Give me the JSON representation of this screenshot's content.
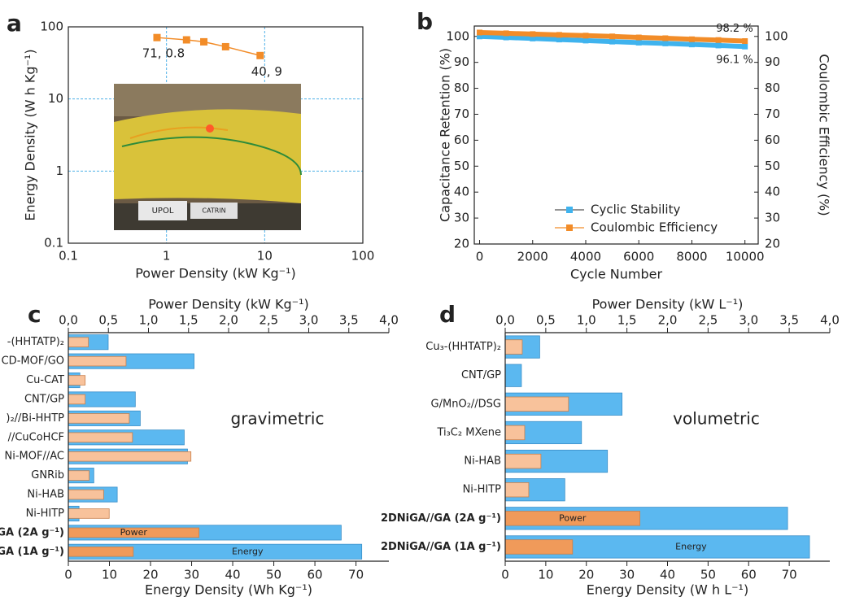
{
  "chart_data": [
    {
      "type": "line",
      "panel_label": "a",
      "xscale": "log",
      "yscale": "log",
      "xlabel": "Power Density (kW Kg⁻¹)",
      "ylabel": "Energy Density (W h Kg⁻¹)",
      "xlim": [
        0.1,
        100
      ],
      "ylim": [
        0.1,
        100
      ],
      "xticks": [
        0.1,
        1,
        10,
        100
      ],
      "yticks": [
        0.1,
        1,
        10,
        100
      ],
      "grid": true,
      "x": [
        0.8,
        1.6,
        2.4,
        4,
        9
      ],
      "series": [
        {
          "color": "#f28c28",
          "values": [
            71,
            66,
            62,
            53,
            40
          ]
        }
      ],
      "annotations": [
        "71, 0.8",
        "40, 9"
      ],
      "inset_labels": [
        "UPOL",
        "CATRIN"
      ]
    },
    {
      "type": "line",
      "panel_label": "b",
      "xlabel": "Cycle Number",
      "ylabel": "Capacitance Retention (%)",
      "y2label": "Coulombic Efficiency (%)",
      "xlim": [
        -200,
        10500
      ],
      "ylim": [
        20,
        104
      ],
      "y2lim": [
        20,
        104
      ],
      "xticks": [
        0,
        2000,
        4000,
        6000,
        8000,
        10000
      ],
      "yticks": [
        20,
        30,
        40,
        50,
        60,
        70,
        80,
        90,
        100
      ],
      "y2ticks": [
        20,
        30,
        40,
        50,
        60,
        70,
        80,
        90,
        100
      ],
      "legend": "lower right",
      "x": [
        0,
        1000,
        2000,
        3000,
        4000,
        5000,
        6000,
        7000,
        8000,
        9000,
        10000
      ],
      "series": [
        {
          "name": "Cyclic Stability",
          "color": "#3fb3ee",
          "values": [
            100,
            99.6,
            99.2,
            98.8,
            98.4,
            98.0,
            97.6,
            97.3,
            96.9,
            96.5,
            96.1
          ]
        },
        {
          "name": "Coulombic Efficiency",
          "color": "#f28c28",
          "axis": "y2",
          "values": [
            101.5,
            101.2,
            100.9,
            100.6,
            100.3,
            100.0,
            99.6,
            99.3,
            98.9,
            98.6,
            98.2
          ]
        }
      ],
      "annotations": [
        "98.2 %",
        "96.1 %"
      ]
    },
    {
      "type": "barh",
      "panel_label": "c",
      "xlabel": "Energy Density (Wh Kg⁻¹)",
      "x2label": "Power Density (kW Kg⁻¹)",
      "xlim": [
        0,
        78
      ],
      "x2lim": [
        0,
        4
      ],
      "xticks": [
        0,
        10,
        20,
        30,
        40,
        50,
        60,
        70
      ],
      "x2ticks": [
        {
          "value": 0,
          "label": "0,0"
        },
        {
          "value": 0.5,
          "label": "0,5"
        },
        {
          "value": 1,
          "label": "1,0"
        },
        {
          "value": 1.5,
          "label": "1,5"
        },
        {
          "value": 2,
          "label": "2,0"
        },
        {
          "value": 2.5,
          "label": "2,5"
        },
        {
          "value": 3,
          "label": "3,0"
        },
        {
          "value": 3.5,
          "label": "3,5"
        },
        {
          "value": 4,
          "label": "4,0"
        }
      ],
      "categories": [
        "-(HHTATP)₂",
        "CD-MOF/GO",
        "Cu-CAT",
        "CNT/GP",
        ")₂//Bi-HHTP",
        "//CuCoHCF",
        "Ni-MOF//AC",
        "GNRib",
        "Ni-HAB",
        "Ni-HITP",
        "/GA (2A g⁻¹)",
        "/GA (1A g⁻¹)"
      ],
      "series": [
        {
          "name": "Energy",
          "color": "#5bb8f0",
          "values": [
            9.7,
            30.6,
            2.8,
            16.3,
            17.5,
            28.2,
            29,
            6.2,
            11.9,
            2.6,
            66.4,
            71.4
          ]
        },
        {
          "name": "Power",
          "color": "#f8c29b",
          "axis": "x2",
          "values": [
            0.25,
            0.72,
            0.21,
            0.21,
            0.76,
            0.8,
            1.53,
            0.26,
            0.44,
            0.51,
            1.63,
            0.81
          ]
        }
      ],
      "annotation": "gravimetric"
    },
    {
      "type": "barh",
      "panel_label": "d",
      "xlabel": "Energy Density (W h L⁻¹)",
      "x2label": "Power Density (kW L⁻¹)",
      "xlim": [
        0,
        80
      ],
      "x2lim": [
        0,
        4
      ],
      "xticks": [
        0,
        10,
        20,
        30,
        40,
        50,
        60,
        70
      ],
      "x2ticks": [
        {
          "value": 0,
          "label": "0,0"
        },
        {
          "value": 0.5,
          "label": "0,5"
        },
        {
          "value": 1,
          "label": "1,0"
        },
        {
          "value": 1.5,
          "label": "1,5"
        },
        {
          "value": 2,
          "label": "2,0"
        },
        {
          "value": 2.5,
          "label": "2,5"
        },
        {
          "value": 3,
          "label": "3,0"
        },
        {
          "value": 3.5,
          "label": "3,5"
        },
        {
          "value": 4,
          "label": "4,0"
        }
      ],
      "categories": [
        "Cu₃-(HHTATP)₂",
        "CNT/GP",
        "G/MnO₂//DSG",
        "Ti₃C₂ MXene",
        "Ni-HAB",
        "Ni-HITP",
        "2DNiGA//GA (2A g⁻¹)",
        "2DNiGA//GA (1A g⁻¹)"
      ],
      "series": [
        {
          "name": "Energy",
          "color": "#5bb8f0",
          "values": [
            8.5,
            4.0,
            28.8,
            18.8,
            25.2,
            14.7,
            69.6,
            75.0
          ]
        },
        {
          "name": "Power",
          "color": "#f8c29b",
          "axis": "x2",
          "values": [
            0.21,
            null,
            0.78,
            0.24,
            0.44,
            0.29,
            1.66,
            0.83
          ]
        }
      ],
      "annotation": "volumetric"
    }
  ]
}
